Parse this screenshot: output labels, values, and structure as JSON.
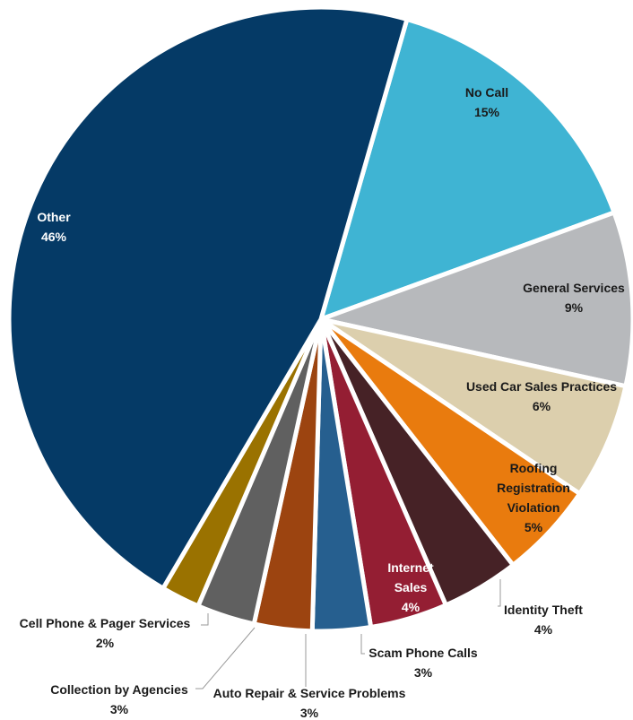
{
  "chart_data": {
    "type": "pie",
    "title": "",
    "slices": [
      {
        "label": "No Call",
        "value": 15,
        "pct": "15%",
        "color": "#3fb4d3",
        "text_color": "#1a1a1a"
      },
      {
        "label": "General Services",
        "value": 9,
        "pct": "9%",
        "color": "#b7b9bc",
        "text_color": "#1a1a1a"
      },
      {
        "label": "Used Car Sales Practices",
        "value": 6,
        "pct": "6%",
        "color": "#dccfad",
        "text_color": "#1a1a1a"
      },
      {
        "label": "Roofing Registration Violation",
        "value": 5,
        "pct": "5%",
        "color": "#e97b0e",
        "text_color": "#1a1a1a"
      },
      {
        "label": "Identity Theft",
        "value": 4,
        "pct": "4%",
        "color": "#462226",
        "text_color": "#1a1a1a"
      },
      {
        "label": "Internet Sales",
        "value": 4,
        "pct": "4%",
        "color": "#941e33",
        "text_color": "#ffffff"
      },
      {
        "label": "Scam Phone Calls",
        "value": 3,
        "pct": "3%",
        "color": "#265f8f",
        "text_color": "#1a1a1a"
      },
      {
        "label": "Auto Repair & Service Problems",
        "value": 3,
        "pct": "3%",
        "color": "#9c4410",
        "text_color": "#1a1a1a"
      },
      {
        "label": "Collection by Agencies",
        "value": 3,
        "pct": "3%",
        "color": "#606060",
        "text_color": "#1a1a1a"
      },
      {
        "label": "Cell Phone & Pager Services",
        "value": 2,
        "pct": "2%",
        "color": "#9a7200",
        "text_color": "#1a1a1a"
      },
      {
        "label": "Other",
        "value": 46,
        "pct": "46%",
        "color": "#053a66",
        "text_color": "#ffffff"
      }
    ]
  }
}
